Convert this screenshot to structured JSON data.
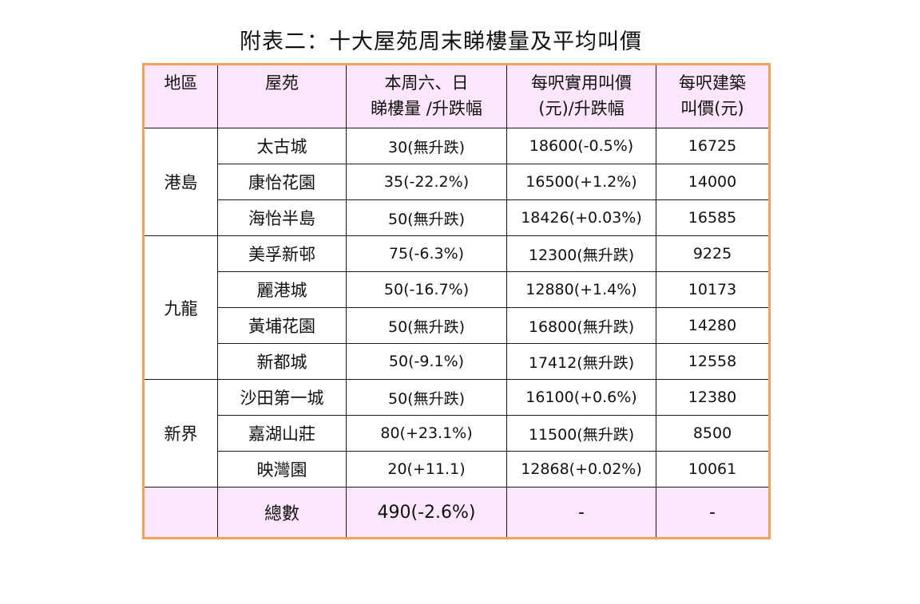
{
  "title": "附表二：十大屋苑周末睇樓量及平均叫價",
  "headers": {
    "region": "地區",
    "estate": "屋苑",
    "viewings_line1": "本周六、日",
    "viewings_line2": "睇樓量 /升跌幅",
    "saleable_line1": "每呎實用叫價",
    "saleable_line2": "(元)/升跌幅",
    "gross_line1": "每呎建築",
    "gross_line2": "叫價(元)"
  },
  "regions": [
    {
      "name": "港島",
      "rows": [
        {
          "estate": "太古城",
          "viewings": "30(無升跌)",
          "saleable": "18600(-0.5%)",
          "gross": "16725"
        },
        {
          "estate": "康怡花園",
          "viewings": "35(-22.2%)",
          "saleable": "16500(+1.2%)",
          "gross": "14000"
        },
        {
          "estate": "海怡半島",
          "viewings": "50(無升跌)",
          "saleable": "18426(+0.03%)",
          "gross": "16585"
        }
      ]
    },
    {
      "name": "九龍",
      "rows": [
        {
          "estate": "美孚新邨",
          "viewings": "75(-6.3%)",
          "saleable": "12300(無升跌)",
          "gross": "9225"
        },
        {
          "estate": "麗港城",
          "viewings": "50(-16.7%)",
          "saleable": "12880(+1.4%)",
          "gross": "10173"
        },
        {
          "estate": "黃埔花園",
          "viewings": "50(無升跌)",
          "saleable": "16800(無升跌)",
          "gross": "14280"
        },
        {
          "estate": "新都城",
          "viewings": "50(-9.1%)",
          "saleable": "17412(無升跌)",
          "gross": "12558"
        }
      ]
    },
    {
      "name": "新界",
      "rows": [
        {
          "estate": "沙田第一城",
          "viewings": "50(無升跌)",
          "saleable": "16100(+0.6%)",
          "gross": "12380"
        },
        {
          "estate": "嘉湖山莊",
          "viewings": "80(+23.1%)",
          "saleable": "11500(無升跌)",
          "gross": "8500"
        },
        {
          "estate": "映灣園",
          "viewings": "20(+11.1)",
          "saleable": "12868(+0.02%)",
          "gross": "10061"
        }
      ]
    }
  ],
  "total": {
    "label": "總數",
    "viewings": "490(-2.6%)",
    "saleable": "-",
    "gross": "-"
  },
  "colors": {
    "border_accent": "#f0a060",
    "header_bg": "#fde6fb"
  }
}
